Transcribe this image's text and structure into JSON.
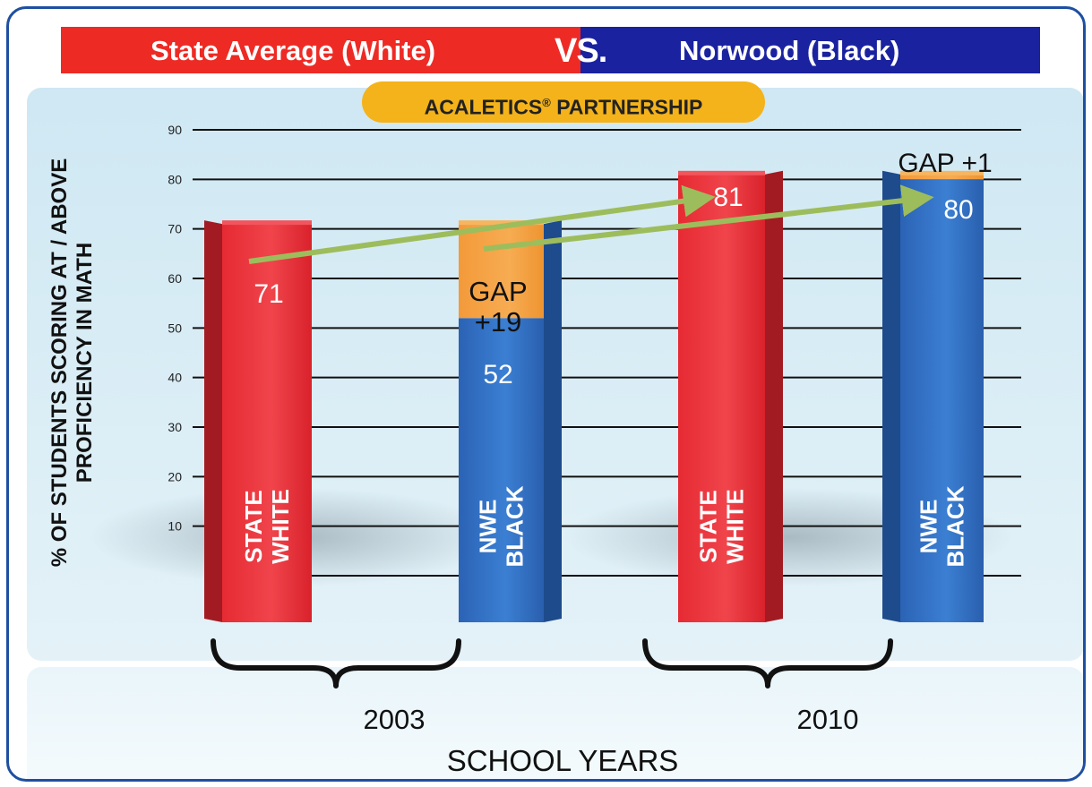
{
  "header": {
    "left_title": "State Average (White)",
    "vs": "VS.",
    "right_title": "Norwood (Black)",
    "partnership": "ACALETICS",
    "partnership_mark": "®",
    "partnership_suffix": " PARTNERSHIP"
  },
  "colors": {
    "state": "#e8262e",
    "norwood": "#2e6fc2",
    "gap": "#f4a33d",
    "arrow": "#9dbd5c",
    "banner_left": "#ee2a24",
    "banner_right": "#1a22a0"
  },
  "chart_data": {
    "type": "bar",
    "ylabel_lines": [
      "% OF STUDENTS SCORING AT / ABOVE",
      "PROFICIENCY IN MATH"
    ],
    "xlabel": "SCHOOL YEARS",
    "ylim": [
      0,
      90
    ],
    "yticks": [
      10,
      20,
      30,
      40,
      50,
      60,
      70,
      80,
      90
    ],
    "groups": [
      "2003",
      "2010"
    ],
    "bars": [
      {
        "group": "2003",
        "label_lines": [
          "STATE",
          "WHITE"
        ],
        "value": 71,
        "value_label": "71",
        "color": "state"
      },
      {
        "group": "2003",
        "label_lines": [
          "NWE",
          "BLACK"
        ],
        "value": 52,
        "value_label": "52",
        "color": "norwood",
        "gap": 19,
        "gap_lines": [
          "GAP",
          "+19"
        ]
      },
      {
        "group": "2010",
        "label_lines": [
          "STATE",
          "WHITE"
        ],
        "value": 81,
        "value_label": "81",
        "color": "state"
      },
      {
        "group": "2010",
        "label_lines": [
          "NWE",
          "BLACK"
        ],
        "value": 80,
        "value_label": "80",
        "color": "norwood",
        "gap": 1,
        "gap_label": "GAP +1"
      }
    ],
    "arrows": [
      {
        "from_bar": 0,
        "to_bar": 2
      },
      {
        "from_bar": 1,
        "to_bar": 3
      }
    ],
    "grid": true
  }
}
